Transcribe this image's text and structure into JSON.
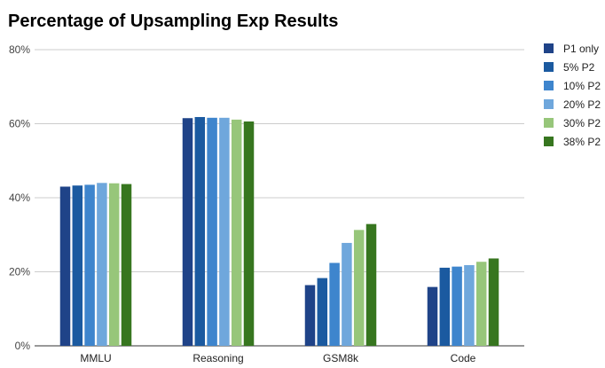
{
  "chart_data": {
    "type": "bar",
    "title": "Percentage of Upsampling Exp Results",
    "xlabel": "",
    "ylabel": "",
    "categories": [
      "MMLU",
      "Reasoning",
      "GSM8k",
      "Code"
    ],
    "ylim": [
      0,
      80
    ],
    "yticks": [
      "0%",
      "20%",
      "40%",
      "60%",
      "80%"
    ],
    "ytick_values": [
      0,
      20,
      40,
      60,
      80
    ],
    "grid": true,
    "legend_position": "right",
    "series": [
      {
        "name": "P1 only",
        "color": "#1f4388",
        "values": [
          43.0,
          61.5,
          16.4,
          15.9
        ]
      },
      {
        "name": "5% P2",
        "color": "#1b5aa0",
        "values": [
          43.3,
          61.8,
          18.3,
          21.1
        ]
      },
      {
        "name": "10% P2",
        "color": "#3e85cd",
        "values": [
          43.5,
          61.6,
          22.4,
          21.4
        ]
      },
      {
        "name": "20% P2",
        "color": "#6fa7dc",
        "values": [
          44.0,
          61.6,
          27.8,
          21.8
        ]
      },
      {
        "name": "30% P2",
        "color": "#97c67a",
        "values": [
          43.9,
          61.1,
          31.3,
          22.7
        ]
      },
      {
        "name": "38% P2",
        "color": "#37761f",
        "values": [
          43.7,
          60.6,
          32.9,
          23.6
        ]
      }
    ]
  }
}
